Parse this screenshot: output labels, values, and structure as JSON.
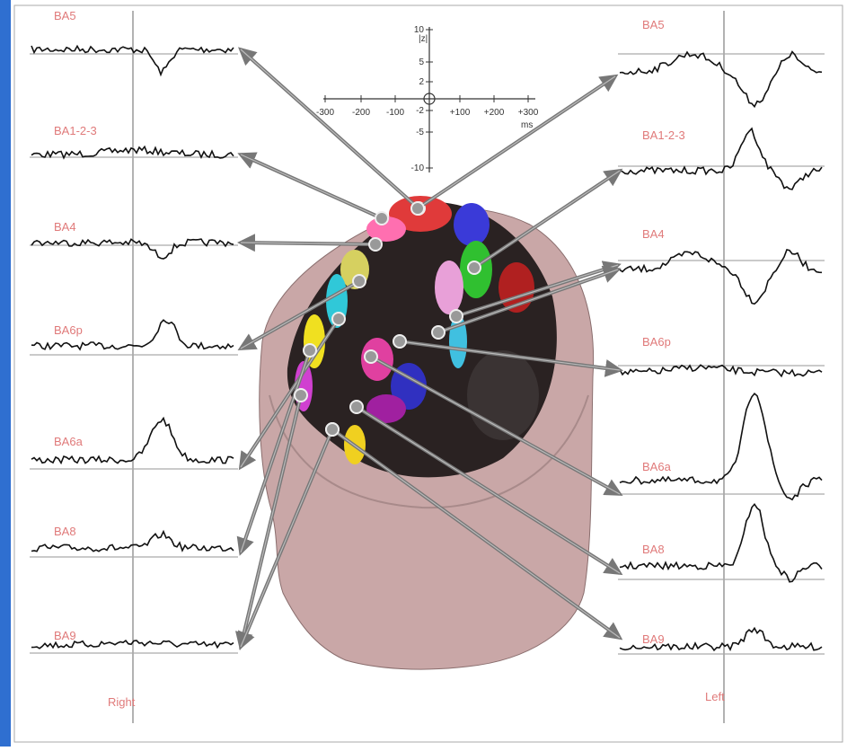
{
  "axis_inset": {
    "y_label": "|z|",
    "y_ticks": [
      "10",
      "5",
      "2",
      "-2",
      "-5",
      "-10"
    ],
    "x_ticks": [
      "-300",
      "-200",
      "-100",
      "+100",
      "+200",
      "+300"
    ],
    "x_unit": "ms"
  },
  "right_panel": {
    "label": "Right",
    "traces": [
      "BA5",
      "BA1-2-3",
      "BA4",
      "BA6p",
      "BA6a",
      "BA8",
      "BA9"
    ]
  },
  "left_panel": {
    "label": "Left",
    "traces": [
      "BA5",
      "BA1-2-3",
      "BA4",
      "BA6p",
      "BA6a",
      "BA8",
      "BA9"
    ]
  }
}
